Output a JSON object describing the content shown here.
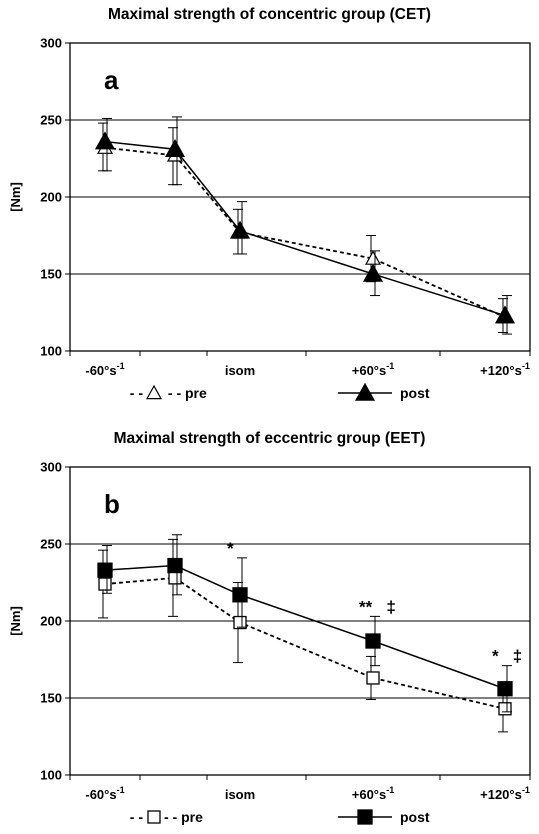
{
  "chart_data": [
    {
      "type": "line",
      "title": "Maximal strength of concentric group (CET)",
      "panel_label": "a",
      "ylabel": "[Nm]",
      "ylim": [
        100,
        300
      ],
      "yticks": [
        "100",
        "150",
        "200",
        "250",
        "300"
      ],
      "grid": true,
      "categories": [
        "-60°s-1",
        "",
        "isom",
        "+60°s-1",
        "+120°s-1"
      ],
      "category_labels": [
        {
          "base": "-60°s",
          "sup": "-1"
        },
        {
          "base": "",
          "sup": ""
        },
        {
          "base": "isom",
          "sup": ""
        },
        {
          "base": "+60°s",
          "sup": "-1"
        },
        {
          "base": "+120°s",
          "sup": "-1"
        }
      ],
      "legend": {
        "position": "bottom",
        "entries": [
          {
            "prefix": "- - ",
            "suffix": " - - pre"
          },
          {
            "prefix": "",
            "suffix": "post"
          }
        ]
      },
      "series": [
        {
          "name": "pre",
          "marker": "triangle-open",
          "style": "dashed",
          "values": [
            232,
            227,
            177,
            160,
            122
          ],
          "err_lo": [
            217,
            208,
            163,
            145,
            112
          ],
          "err_hi": [
            248,
            245,
            192,
            175,
            134
          ]
        },
        {
          "name": "post",
          "marker": "triangle-filled",
          "style": "solid",
          "values": [
            236,
            231,
            178,
            150,
            123
          ],
          "err_lo": [
            217,
            208,
            163,
            136,
            111
          ],
          "err_hi": [
            251,
            252,
            197,
            165,
            136
          ]
        }
      ],
      "annotations": []
    },
    {
      "type": "line",
      "title": "Maximal strength of eccentric group (EET)",
      "panel_label": "b",
      "ylabel": "[Nm]",
      "ylim": [
        100,
        300
      ],
      "yticks": [
        "100",
        "150",
        "200",
        "250",
        "300"
      ],
      "grid": true,
      "categories": [
        "-60°s-1",
        "",
        "isom",
        "+60°s-1",
        "+120°s-1"
      ],
      "category_labels": [
        {
          "base": "-60°s",
          "sup": "-1"
        },
        {
          "base": "",
          "sup": ""
        },
        {
          "base": "isom",
          "sup": ""
        },
        {
          "base": "+60°s",
          "sup": "-1"
        },
        {
          "base": "+120°s",
          "sup": "-1"
        }
      ],
      "legend": {
        "position": "bottom",
        "entries": [
          {
            "prefix": "- -",
            "suffix": "- - pre"
          },
          {
            "prefix": "",
            "suffix": "post"
          }
        ]
      },
      "series": [
        {
          "name": "pre",
          "marker": "square-open",
          "style": "dashed",
          "values": [
            224,
            228,
            199,
            163,
            143
          ],
          "err_lo": [
            202,
            203,
            173,
            149,
            128
          ],
          "err_hi": [
            246,
            253,
            225,
            177,
            158
          ]
        },
        {
          "name": "post",
          "marker": "square-filled",
          "style": "solid",
          "values": [
            233,
            236,
            217,
            187,
            156
          ],
          "err_lo": [
            218,
            217,
            196,
            171,
            141
          ],
          "err_hi": [
            249,
            256,
            241,
            203,
            171
          ]
        }
      ],
      "annotations": [
        {
          "category_index": 2,
          "text": "*"
        },
        {
          "category_index": 3,
          "text": "**   ‡"
        },
        {
          "category_index": 4,
          "text": "*   ‡"
        }
      ]
    }
  ]
}
